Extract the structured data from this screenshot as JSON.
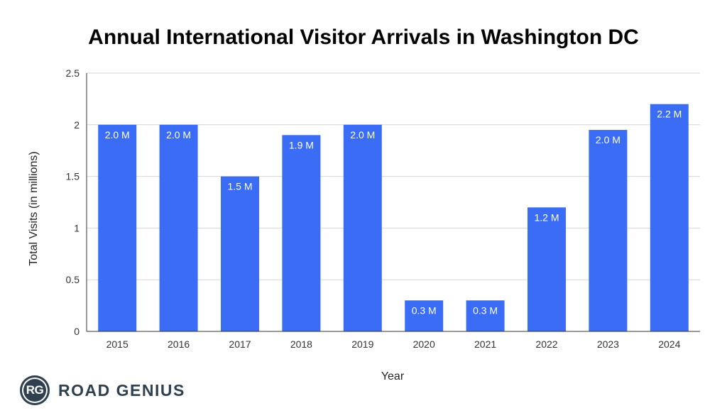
{
  "chart_data": {
    "type": "bar",
    "title": "Annual International Visitor Arrivals in Washington DC",
    "xlabel": "Year",
    "ylabel": "Total Visits (in millions)",
    "categories": [
      "2015",
      "2016",
      "2017",
      "2018",
      "2019",
      "2020",
      "2021",
      "2022",
      "2023",
      "2024"
    ],
    "values": [
      2.0,
      2.0,
      1.5,
      1.9,
      2.0,
      0.3,
      0.3,
      1.2,
      1.95,
      2.2
    ],
    "data_labels": [
      "2.0 M",
      "2.0 M",
      "1.5 M",
      "1.9 M",
      "2.0 M",
      "0.3 M",
      "0.3 M",
      "1.2 M",
      "2.0 M",
      "2.2 M"
    ],
    "ylim": [
      0,
      2.5
    ],
    "yticks": [
      "0",
      "0.5",
      "1",
      "1.5",
      "2",
      "2.5"
    ],
    "grid": true,
    "legend": "none",
    "bar_color": "#3b6cf6"
  },
  "brand": {
    "logo_text": "RG",
    "name": "ROAD GENIUS",
    "logo_icon": "rg-circle-logo"
  }
}
